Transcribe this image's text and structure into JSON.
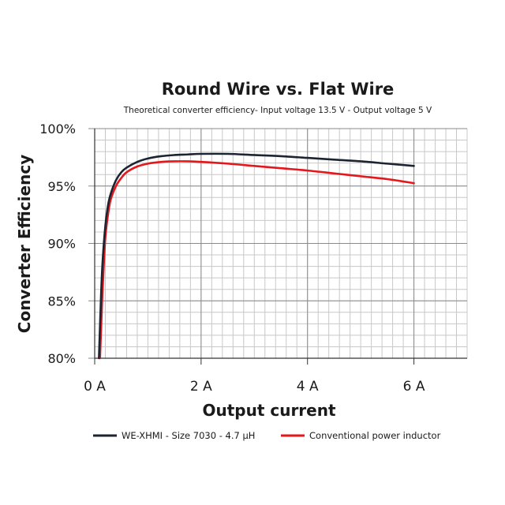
{
  "chart_data": {
    "type": "line",
    "title": "Round Wire vs. Flat Wire",
    "subtitle": "Theoretical converter efficiency- Input voltage 13.5 V - Output voltage 5 V",
    "xlabel": "Output current",
    "ylabel": "Converter Efficiency",
    "xlim": [
      0,
      7
    ],
    "ylim": [
      80,
      100
    ],
    "x_ticks": [
      0,
      2,
      4,
      6
    ],
    "x_tick_labels": [
      "0 A",
      "2 A",
      "4 A",
      "6 A"
    ],
    "y_ticks": [
      80,
      85,
      90,
      95,
      100
    ],
    "y_tick_labels": [
      "80%",
      "85%",
      "90%",
      "95%",
      "100%"
    ],
    "grid": true,
    "legend_position": "bottom",
    "series": [
      {
        "name": "WE-XHMI - Size 7030 - 4.7 µH",
        "color": "#1c2331",
        "x": [
          0.08,
          0.12,
          0.15,
          0.2,
          0.25,
          0.3,
          0.4,
          0.5,
          0.6,
          0.8,
          1.0,
          1.25,
          1.5,
          1.75,
          2.0,
          2.5,
          3.0,
          3.5,
          4.0,
          4.5,
          5.0,
          5.5,
          6.0
        ],
        "values": [
          80.0,
          85.5,
          88.5,
          91.5,
          93.3,
          94.3,
          95.5,
          96.2,
          96.6,
          97.1,
          97.4,
          97.6,
          97.7,
          97.75,
          97.8,
          97.8,
          97.7,
          97.6,
          97.45,
          97.3,
          97.15,
          96.95,
          96.75
        ]
      },
      {
        "name": "Conventional power inductor",
        "color": "#e4171b",
        "x": [
          0.1,
          0.14,
          0.17,
          0.2,
          0.25,
          0.3,
          0.4,
          0.5,
          0.6,
          0.8,
          1.0,
          1.25,
          1.5,
          1.75,
          2.0,
          2.5,
          3.0,
          3.5,
          4.0,
          4.5,
          5.0,
          5.5,
          6.0
        ],
        "values": [
          80.0,
          85.0,
          88.0,
          90.5,
          92.5,
          93.8,
          95.0,
          95.7,
          96.2,
          96.7,
          96.95,
          97.1,
          97.15,
          97.15,
          97.1,
          96.95,
          96.75,
          96.55,
          96.35,
          96.1,
          95.85,
          95.6,
          95.25
        ]
      }
    ]
  },
  "legend": {
    "items": [
      {
        "label": "WE-XHMI - Size 7030 - 4.7 µH",
        "color": "#1c2331"
      },
      {
        "label": "Conventional power inductor",
        "color": "#e4171b"
      }
    ]
  }
}
